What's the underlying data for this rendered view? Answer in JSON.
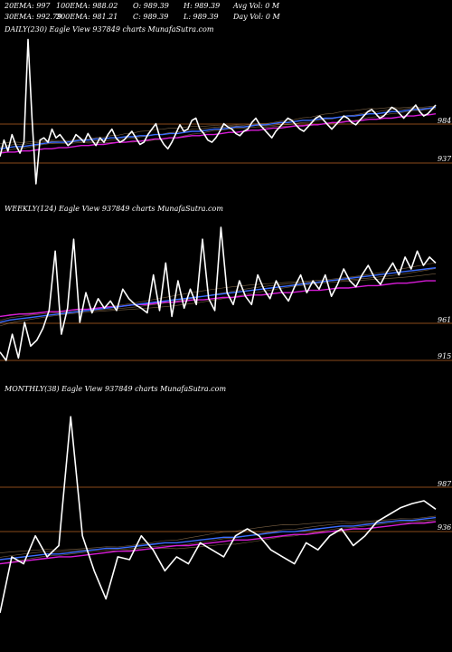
{
  "header": {
    "row1": [
      {
        "label": "20EMA: 997"
      },
      {
        "label": "100EMA: 988.02"
      },
      {
        "label": "O: 989.39"
      },
      {
        "label": "H: 989.39"
      },
      {
        "label": "Avg Vol: 0  M"
      }
    ],
    "row2": [
      {
        "label": "30EMA: 992.79"
      },
      {
        "label": "200EMA: 981.21"
      },
      {
        "label": "C: 989.39"
      },
      {
        "label": "L: 989.39"
      },
      {
        "label": "Day Vol: 0  M"
      }
    ]
  },
  "colors": {
    "background": "#000000",
    "price": "#ffffff",
    "ema_short": "#3a6cff",
    "ema_long": "#d81bd8",
    "level_line": "#8a4a1a",
    "ema_misc": "#c9a070"
  },
  "chart_data": [
    {
      "type": "line",
      "title": "DAILY(230) Eagle  View  937849 charts MunafaSutra.com",
      "level_labels": [
        "984",
        "937"
      ],
      "series": [
        {
          "values": [
            955,
            970,
            960,
            975,
            965,
            958,
            968,
            1062,
            990,
            930,
            970,
            972,
            968,
            980,
            972,
            975,
            970,
            965,
            968,
            975,
            972,
            968,
            976,
            970,
            965,
            972,
            968,
            975,
            980,
            972,
            968,
            970,
            974,
            978,
            972,
            966,
            968,
            975,
            980,
            985,
            972,
            966,
            962,
            968,
            976,
            984,
            978,
            980,
            988,
            990,
            980,
            976,
            970,
            968,
            972,
            978,
            985,
            982,
            980,
            976,
            974,
            978,
            980,
            986,
            990,
            984,
            980,
            976,
            972,
            978,
            982,
            986,
            990,
            988,
            984,
            980,
            978,
            982,
            986,
            990,
            992,
            988,
            984,
            980,
            984,
            988,
            992,
            990,
            986,
            984,
            988,
            992,
            996,
            998,
            994,
            990,
            992,
            996,
            1000,
            998,
            994,
            990,
            994,
            998,
            1002,
            996,
            992,
            994,
            998,
            1002
          ]
        },
        {
          "values": [
            962,
            963,
            964,
            964,
            965,
            966,
            967,
            968,
            968,
            968,
            969,
            970,
            970,
            971,
            971,
            972,
            972,
            973,
            973,
            974,
            974,
            975,
            975,
            976,
            976,
            977,
            978,
            978,
            979,
            980,
            980,
            981,
            982,
            982,
            983,
            984,
            984,
            985,
            986,
            986,
            987,
            988,
            988,
            989,
            990,
            990,
            991,
            992,
            992,
            993,
            994,
            994,
            995,
            996,
            996,
            997,
            998,
            998,
            999,
            1000
          ]
        },
        {
          "values": [
            958,
            959,
            959,
            960,
            960,
            961,
            962,
            962,
            963,
            963,
            964,
            965,
            965,
            966,
            966,
            967,
            968,
            968,
            969,
            969,
            970,
            971,
            971,
            972,
            972,
            973,
            974,
            974,
            975,
            975,
            976,
            977,
            977,
            978,
            979,
            979,
            980,
            981,
            981,
            982,
            983,
            983,
            984,
            984,
            985,
            986,
            986,
            987,
            987,
            988,
            989,
            989,
            990,
            990,
            991,
            992,
            992,
            993,
            993,
            994
          ]
        }
      ]
    },
    {
      "type": "line",
      "title": "WEEKLY(124) Eagle  View  937849 charts MunafaSutra.com",
      "level_labels": [
        "961",
        "915"
      ],
      "series": [
        {
          "values": [
            925,
            918,
            940,
            920,
            950,
            930,
            935,
            945,
            960,
            1010,
            940,
            962,
            1020,
            950,
            975,
            958,
            970,
            962,
            968,
            960,
            978,
            970,
            965,
            962,
            958,
            990,
            960,
            1000,
            955,
            985,
            962,
            978,
            965,
            1020,
            970,
            960,
            1030,
            975,
            965,
            985,
            972,
            965,
            990,
            978,
            970,
            985,
            975,
            968,
            980,
            990,
            975,
            985,
            978,
            990,
            972,
            982,
            995,
            985,
            980,
            990,
            998,
            988,
            982,
            992,
            1000,
            990,
            1005,
            995,
            1010,
            998,
            1005,
            1000
          ]
        },
        {
          "values": [
            950,
            952,
            953,
            954,
            955,
            956,
            957,
            958,
            959,
            960,
            961,
            962,
            963,
            964,
            965,
            966,
            967,
            968,
            969,
            970,
            971,
            972,
            973,
            974,
            975,
            976,
            977,
            978,
            979,
            980,
            981,
            982,
            983,
            984,
            985,
            986,
            987,
            988,
            989,
            990,
            991,
            992,
            993,
            994,
            995,
            996
          ]
        },
        {
          "values": [
            955,
            956,
            957,
            957,
            958,
            959,
            959,
            960,
            961,
            961,
            962,
            963,
            963,
            964,
            965,
            965,
            966,
            967,
            967,
            968,
            969,
            969,
            970,
            971,
            971,
            972,
            973,
            973,
            974,
            975,
            975,
            976,
            977,
            977,
            978,
            979,
            979,
            980,
            981,
            981,
            982,
            983,
            983,
            984,
            985,
            985
          ]
        }
      ]
    },
    {
      "type": "line",
      "title": "MONTHLY(38) Eagle  View  937849 charts MunafaSutra.com",
      "level_labels": [
        "987",
        "936"
      ],
      "series": [
        {
          "values": [
            920,
            960,
            955,
            975,
            960,
            968,
            1060,
            975,
            950,
            930,
            960,
            958,
            975,
            965,
            950,
            960,
            955,
            970,
            965,
            960,
            975,
            980,
            975,
            965,
            960,
            955,
            970,
            965,
            975,
            980,
            968,
            975,
            985,
            990,
            995,
            998,
            1000,
            994
          ]
        },
        {
          "values": [
            958,
            959,
            960,
            961,
            962,
            962,
            963,
            964,
            965,
            966,
            966,
            967,
            968,
            969,
            970,
            970,
            971,
            972,
            973,
            974,
            974,
            975,
            976,
            977,
            978,
            978,
            979,
            980,
            981,
            982,
            982,
            983,
            984,
            985,
            986,
            986,
            987,
            988
          ]
        },
        {
          "values": [
            955,
            956,
            957,
            958,
            959,
            960,
            960,
            961,
            962,
            963,
            964,
            964,
            965,
            966,
            967,
            968,
            968,
            969,
            970,
            971,
            972,
            972,
            973,
            974,
            975,
            976,
            976,
            977,
            978,
            979,
            980,
            980,
            981,
            982,
            983,
            984,
            984,
            985
          ]
        }
      ]
    }
  ]
}
